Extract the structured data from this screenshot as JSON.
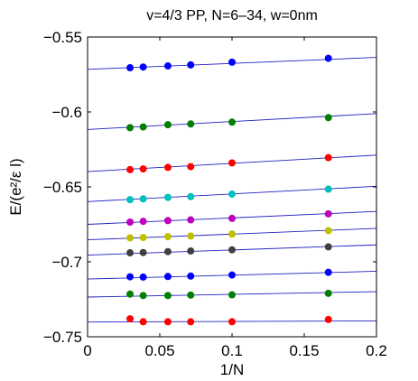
{
  "chart_data": {
    "type": "scatter",
    "title": "v=4/3 PP, N=6–34, w=0nm",
    "xlabel": "1/N",
    "ylabel": "E/(e²/ε l)",
    "xlim": [
      0,
      0.2
    ],
    "ylim": [
      -0.75,
      -0.55
    ],
    "x_ticks": [
      0,
      0.05,
      0.1,
      0.15,
      0.2
    ],
    "x_tick_labels": [
      "0",
      "0.05",
      "0.1",
      "0.15",
      "0.2"
    ],
    "y_ticks": [
      -0.75,
      -0.7,
      -0.65,
      -0.6,
      -0.55
    ],
    "y_tick_labels": [
      "−0.75",
      "−0.7",
      "−0.65",
      "−0.6",
      "−0.55"
    ],
    "grid": false,
    "legend": "none",
    "fit_line_color": "#2020c0",
    "x": [
      0.0294,
      0.0385,
      0.0556,
      0.0714,
      0.1,
      0.1667
    ],
    "series": [
      {
        "color": "#0000ff",
        "values": [
          -0.5705,
          -0.57,
          -0.5693,
          -0.5686,
          -0.5668,
          -0.5642
        ],
        "fit": [
          -0.5716,
          0.04
        ]
      },
      {
        "color": "#007f00",
        "values": [
          -0.6105,
          -0.61,
          -0.6085,
          -0.608,
          -0.6068,
          -0.6038
        ],
        "fit": [
          -0.6117,
          0.053
        ]
      },
      {
        "color": "#ff0000",
        "values": [
          -0.6385,
          -0.638,
          -0.637,
          -0.6365,
          -0.634,
          -0.6305
        ],
        "fit": [
          -0.6398,
          0.055
        ]
      },
      {
        "color": "#00bfbf",
        "values": [
          -0.6585,
          -0.658,
          -0.657,
          -0.6565,
          -0.6548,
          -0.6515
        ],
        "fit": [
          -0.6598,
          0.051
        ]
      },
      {
        "color": "#bf00bf",
        "values": [
          -0.6735,
          -0.673,
          -0.6725,
          -0.672,
          -0.671,
          -0.668
        ],
        "fit": [
          -0.675,
          0.043
        ]
      },
      {
        "color": "#bfbf00",
        "values": [
          -0.684,
          -0.6838,
          -0.6832,
          -0.6828,
          -0.6815,
          -0.6792
        ],
        "fit": [
          -0.6853,
          0.038
        ]
      },
      {
        "color": "#404040",
        "values": [
          -0.694,
          -0.6938,
          -0.6932,
          -0.6928,
          -0.692,
          -0.69
        ],
        "fit": [
          -0.6955,
          0.034
        ]
      },
      {
        "color": "#0000ff",
        "values": [
          -0.71,
          -0.7102,
          -0.7098,
          -0.7095,
          -0.7088,
          -0.707
        ],
        "fit": [
          -0.7115,
          0.026
        ]
      },
      {
        "color": "#007f00",
        "values": [
          -0.7215,
          -0.7225,
          -0.7225,
          -0.7222,
          -0.722,
          -0.721
        ],
        "fit": [
          -0.7235,
          0.018
        ]
      },
      {
        "color": "#ff0000",
        "values": [
          -0.738,
          -0.74,
          -0.74,
          -0.74,
          -0.74,
          -0.7385
        ],
        "fit": [
          -0.7402,
          0.004
        ]
      }
    ]
  }
}
